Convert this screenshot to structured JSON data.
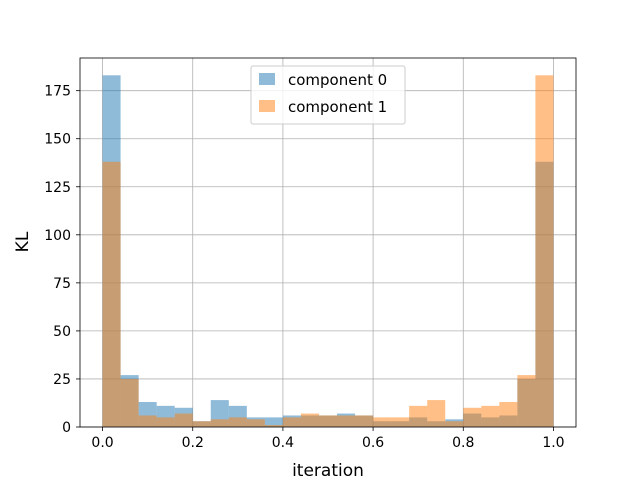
{
  "chart_data": {
    "type": "bar",
    "subtype": "overlapping-histogram",
    "xlabel": "iteration",
    "ylabel": "KL",
    "xlim": [
      -0.05,
      1.05
    ],
    "ylim": [
      0,
      192
    ],
    "xticks": [
      0.0,
      0.2,
      0.4,
      0.6,
      0.8,
      1.0
    ],
    "xtick_labels": [
      "0.0",
      "0.2",
      "0.4",
      "0.6",
      "0.8",
      "1.0"
    ],
    "yticks": [
      0,
      25,
      50,
      75,
      100,
      125,
      150,
      175
    ],
    "ytick_labels": [
      "0",
      "25",
      "50",
      "75",
      "100",
      "125",
      "150",
      "175"
    ],
    "grid": true,
    "legend_position": "top-center",
    "bin_edges": [
      0.0,
      0.04,
      0.08,
      0.12,
      0.16,
      0.2,
      0.24,
      0.28,
      0.32,
      0.36,
      0.4,
      0.44,
      0.48,
      0.52,
      0.56,
      0.6,
      0.64,
      0.68,
      0.72,
      0.76,
      0.8,
      0.84,
      0.88,
      0.92,
      0.96,
      1.0
    ],
    "series": [
      {
        "name": "component 0",
        "color": "#1f77b4",
        "values": [
          183,
          27,
          13,
          11,
          10,
          3,
          14,
          11,
          5,
          5,
          6,
          6,
          6,
          7,
          6,
          3,
          3,
          5,
          3,
          4,
          7,
          5,
          6,
          25,
          138
        ]
      },
      {
        "name": "component 1",
        "color": "#ff7f0e",
        "values": [
          138,
          25,
          6,
          5,
          7,
          3,
          4,
          5,
          4,
          1,
          5,
          7,
          6,
          6,
          6,
          5,
          5,
          11,
          14,
          3,
          10,
          11,
          13,
          27,
          183
        ]
      }
    ]
  }
}
